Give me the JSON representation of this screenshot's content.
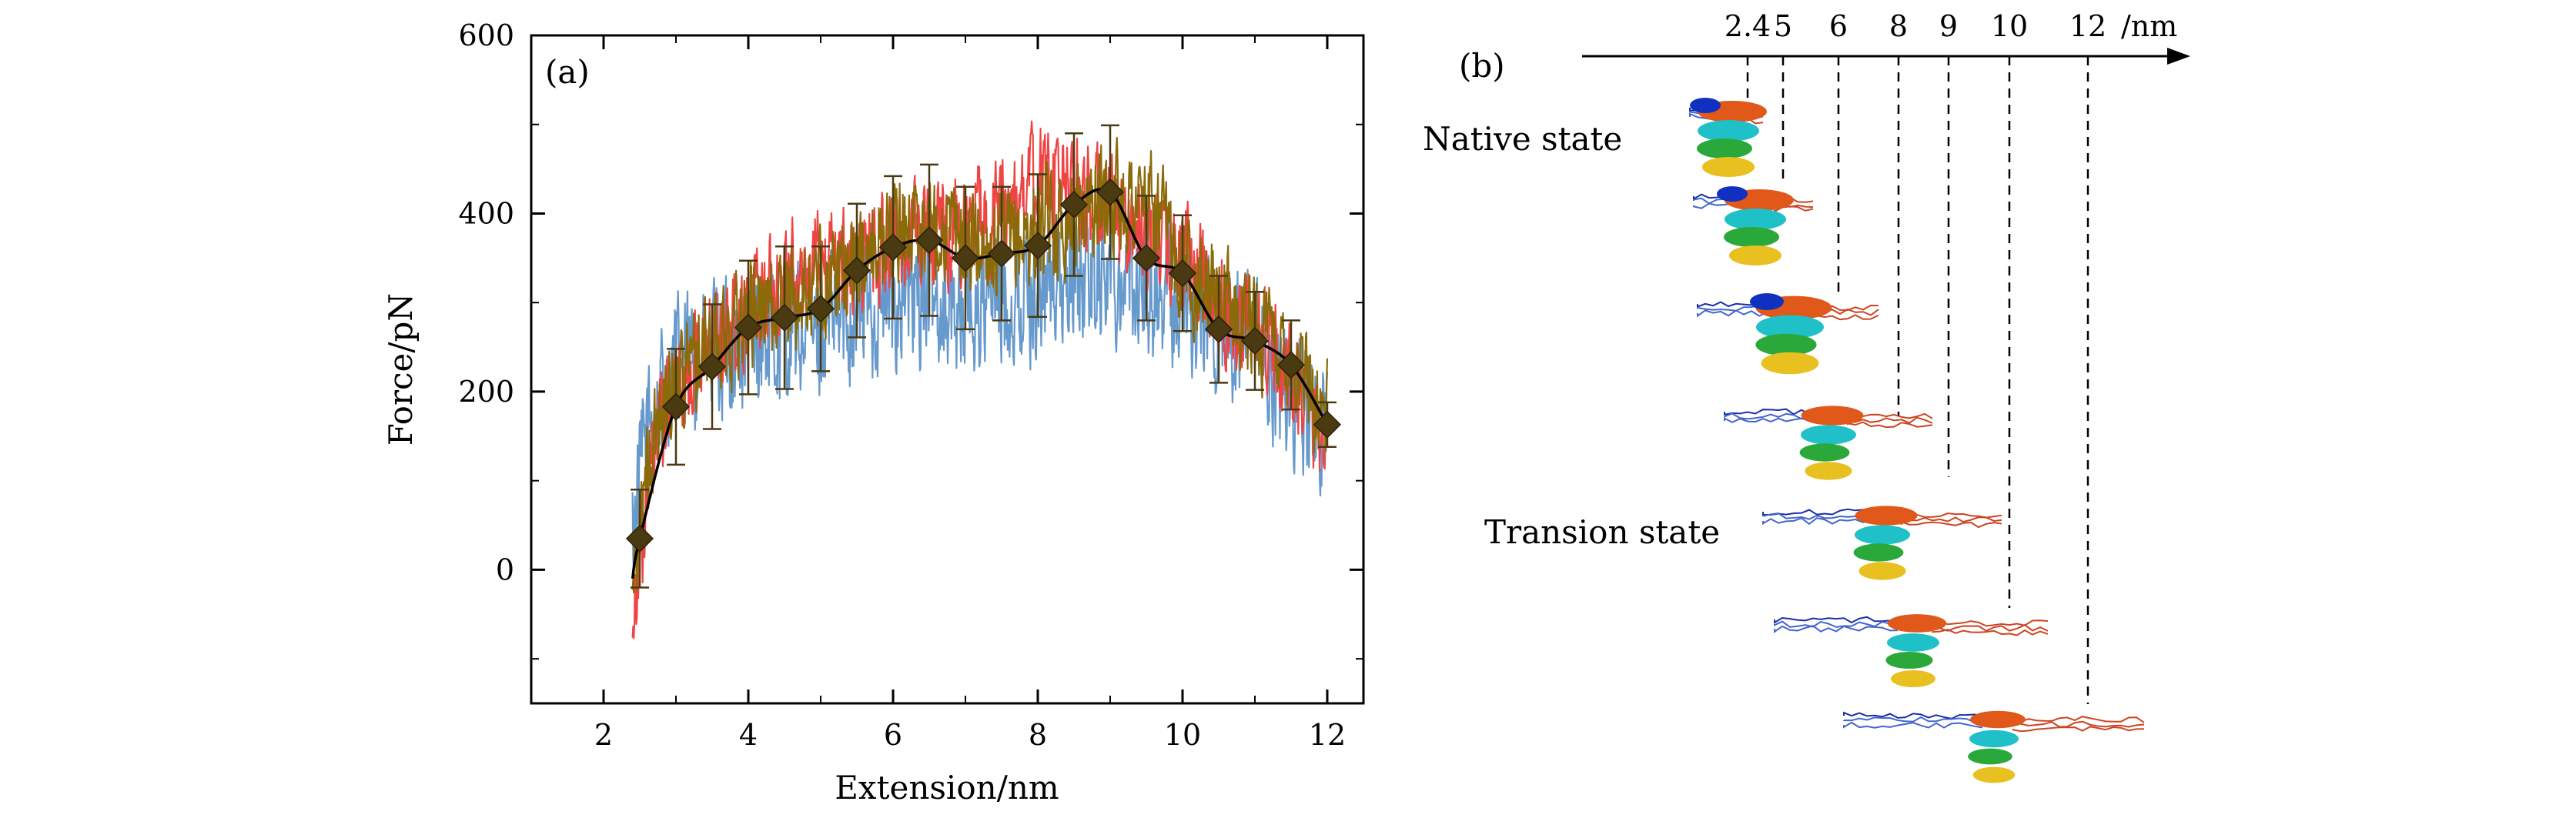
{
  "panel_a_label": "(a)",
  "panel_b_label": "(b)",
  "chart_data": {
    "type": "line",
    "title": "",
    "xlabel": "Extension/nm",
    "ylabel": "Force/pN",
    "xlim": [
      1,
      12.5
    ],
    "ylim": [
      -150,
      600
    ],
    "xticks": [
      2,
      4,
      6,
      8,
      10,
      12
    ],
    "yticks": [
      0,
      200,
      400,
      600
    ],
    "grid": false,
    "legend": "none",
    "series": [
      {
        "color": "#ef4444",
        "style": "noisy",
        "amplitude": 110,
        "x": [
          2.4,
          2.6,
          2.8,
          3.0,
          3.5,
          4.0,
          4.5,
          5.0,
          5.5,
          6.0,
          6.5,
          7.0,
          7.5,
          8.0,
          8.5,
          9.0,
          9.5,
          10.0,
          10.5,
          11.0,
          11.5,
          12.0
        ],
        "values": [
          -40,
          80,
          160,
          200,
          260,
          300,
          330,
          340,
          350,
          365,
          380,
          385,
          400,
          440,
          430,
          400,
          380,
          350,
          300,
          270,
          220,
          150
        ]
      },
      {
        "color": "#6699cc",
        "style": "noisy",
        "amplitude": 140,
        "x": [
          2.4,
          2.6,
          2.8,
          3.0,
          3.5,
          4.0,
          4.5,
          5.0,
          5.5,
          6.0,
          6.5,
          7.0,
          7.5,
          8.0,
          8.5,
          9.0,
          9.5,
          10.0,
          10.5,
          11.0,
          11.5,
          12.0
        ],
        "values": [
          40,
          160,
          200,
          230,
          240,
          250,
          260,
          270,
          290,
          300,
          310,
          290,
          300,
          310,
          330,
          340,
          320,
          300,
          270,
          240,
          200,
          150
        ]
      },
      {
        "color": "#8b6a0a",
        "style": "noisy",
        "amplitude": 110,
        "x": [
          2.4,
          2.6,
          2.8,
          3.0,
          3.5,
          4.0,
          4.5,
          5.0,
          5.5,
          6.0,
          6.5,
          7.0,
          7.5,
          8.0,
          8.5,
          9.0,
          9.5,
          10.0,
          10.5,
          11.0,
          11.5,
          12.0
        ],
        "values": [
          -20,
          100,
          180,
          220,
          250,
          290,
          300,
          320,
          350,
          380,
          390,
          370,
          360,
          380,
          400,
          420,
          410,
          350,
          300,
          270,
          240,
          170
        ]
      },
      {
        "color": "#000000",
        "style": "mean",
        "markers": "diamond",
        "marker_color": "#4a3a12",
        "x": [
          2.5,
          3.0,
          3.5,
          4.0,
          4.5,
          5.0,
          5.5,
          6.0,
          6.5,
          7.0,
          7.5,
          8.0,
          8.5,
          9.0,
          9.5,
          10.0,
          10.5,
          11.0,
          11.5,
          12.0
        ],
        "values": [
          35,
          183,
          228,
          272,
          283,
          293,
          336,
          362,
          370,
          350,
          355,
          364,
          410,
          424,
          350,
          333,
          270,
          257,
          230,
          163
        ],
        "errors": [
          55,
          65,
          70,
          75,
          80,
          70,
          75,
          80,
          85,
          80,
          75,
          80,
          80,
          75,
          70,
          65,
          60,
          55,
          50,
          25
        ]
      }
    ]
  },
  "panel_b": {
    "axis_ticks": [
      "2.4",
      "5",
      "6",
      "8",
      "9",
      "10",
      "12"
    ],
    "axis_unit": "/nm",
    "native_label": "Native state",
    "transition_label": "Transion state"
  }
}
